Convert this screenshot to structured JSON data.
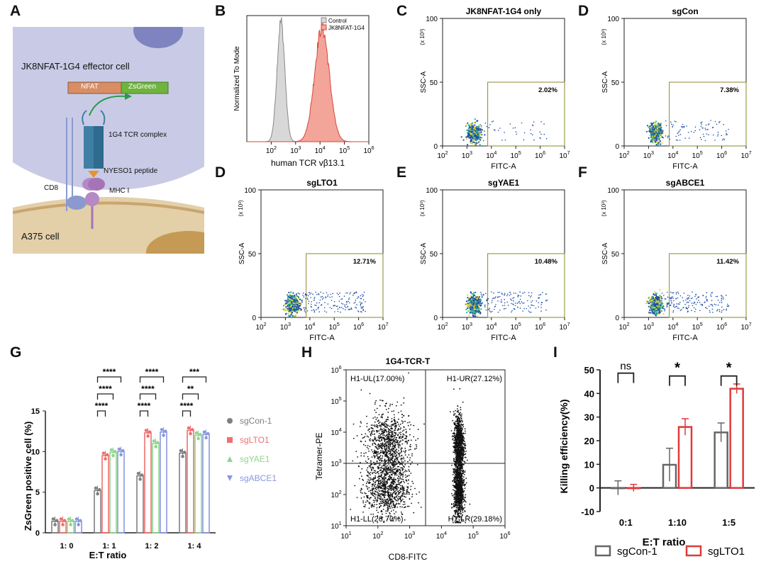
{
  "panel_letters": {
    "A": "A",
    "B": "B",
    "C": "C",
    "D1": "D",
    "D2": "D",
    "E": "E",
    "F": "F",
    "G": "G",
    "H": "H",
    "I": "I"
  },
  "cartoon": {
    "effector_cell": "JK8NFAT-1G4 effector cell",
    "nfat": "NFAT",
    "zsgreen": "ZsGreen",
    "tcr_complex": "1G4 TCR complex",
    "peptide": "NYESO1 peptide",
    "cd8": "CD8",
    "mhc": "MHC I",
    "target_cell": "A375 cell"
  },
  "histogram": {
    "ylabel": "Normalized To Mode",
    "xlabel": "human TCR vβ13.1",
    "legend": [
      "Control",
      "JK8NFAT-1G4"
    ],
    "colors": {
      "control": "#c8c8c8",
      "sample": "#e8776b"
    }
  },
  "flow_panels": [
    {
      "id": "C",
      "title": "JK8NFAT-1G4 only",
      "gate_pct": "2.02%"
    },
    {
      "id": "D1",
      "title": "sgCon",
      "gate_pct": "7.38%"
    },
    {
      "id": "D2",
      "title": "sgLTO1",
      "gate_pct": "12.71%"
    },
    {
      "id": "E",
      "title": "sgYAE1",
      "gate_pct": "10.48%"
    },
    {
      "id": "F",
      "title": "sgABCE1",
      "gate_pct": "11.42%"
    }
  ],
  "flow_axes": {
    "ylabel": "SSC-A",
    "xlabel": "FITC-A",
    "ymult": "(x 10³)"
  },
  "chart_data": [
    {
      "panel": "B",
      "type": "area",
      "ylabel": "Normalized To Mode",
      "xlabel": "human TCR vβ13.1",
      "xscale": "log",
      "xlim": [
        10,
        1000000
      ],
      "series": [
        {
          "name": "Control",
          "peak_x": 250
        },
        {
          "name": "JK8NFAT-1G4",
          "peak_x": 12000
        }
      ]
    },
    {
      "panel": "G",
      "type": "bar",
      "xlabel": "E:T ratio",
      "ylabel": "ZsGreen positive cell (%)",
      "ylim": [
        0,
        15
      ],
      "categories": [
        "1: 0",
        "1: 1",
        "1: 2",
        "1: 4"
      ],
      "series": [
        {
          "name": "sgCon-1",
          "color": "#808080",
          "values": [
            1.4,
            5.2,
            7.0,
            9.8
          ]
        },
        {
          "name": "sgLTO1",
          "color": "#f07070",
          "values": [
            1.4,
            9.5,
            12.3,
            12.6
          ]
        },
        {
          "name": "sgYAE1",
          "color": "#8fd68f",
          "values": [
            1.4,
            9.9,
            11.0,
            12.0
          ]
        },
        {
          "name": "sgABCE1",
          "color": "#8a98e0",
          "values": [
            1.4,
            10.0,
            12.4,
            12.1
          ]
        }
      ],
      "significance": [
        "****",
        "****",
        "****",
        "****",
        "****",
        "****",
        "***",
        "**",
        "****"
      ]
    },
    {
      "panel": "H",
      "type": "scatter",
      "title": "1G4-TCR-T",
      "xlabel": "CD8-FITC",
      "ylabel": "Tetramer-PE",
      "xscale": "log",
      "yscale": "log",
      "xlim": [
        10,
        1000000
      ],
      "ylim": [
        10,
        1000000
      ],
      "quadrants": [
        "H1-UL(17.00%)",
        "H1-UR(27.12%)",
        "H1-LL(26.70%)",
        "H1-LR(29.18%)"
      ]
    },
    {
      "panel": "I",
      "type": "bar",
      "xlabel": "E:T ratio",
      "ylabel": "Killing efficiency(%)",
      "ylim": [
        -10,
        50
      ],
      "categories": [
        "0:1",
        "1:10",
        "1:5"
      ],
      "series": [
        {
          "name": "sgCon-1",
          "color": "#666666",
          "values": [
            0.0,
            9.8,
            23.5
          ],
          "err": [
            3.0,
            7.0,
            4.0
          ]
        },
        {
          "name": "sgLTO1",
          "color": "#e03a3a",
          "values": [
            0.0,
            25.8,
            42.0
          ],
          "err": [
            1.5,
            3.5,
            2.0
          ]
        }
      ],
      "significance": [
        "ns",
        "*",
        "*"
      ]
    }
  ]
}
